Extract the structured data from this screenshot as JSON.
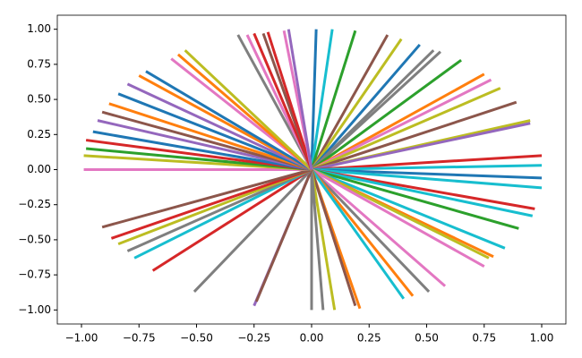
{
  "chart_data": {
    "type": "line",
    "xlim": [
      -1.105,
      1.105
    ],
    "ylim": [
      -1.1,
      1.1
    ],
    "xticks": [
      {
        "value": -1,
        "label": "−1.00"
      },
      {
        "value": -0.75,
        "label": "−0.75"
      },
      {
        "value": -0.5,
        "label": "−0.50"
      },
      {
        "value": -0.25,
        "label": "−0.25"
      },
      {
        "value": 0,
        "label": "0.00"
      },
      {
        "value": 0.25,
        "label": "0.25"
      },
      {
        "value": 0.5,
        "label": "0.50"
      },
      {
        "value": 0.75,
        "label": "0.75"
      },
      {
        "value": 1,
        "label": "1.00"
      }
    ],
    "yticks": [
      {
        "value": -1,
        "label": "−1.00"
      },
      {
        "value": -0.75,
        "label": "−0.75"
      },
      {
        "value": -0.5,
        "label": "−0.50"
      },
      {
        "value": -0.25,
        "label": "−0.25"
      },
      {
        "value": 0,
        "label": "0.00"
      },
      {
        "value": 0.25,
        "label": "0.25"
      },
      {
        "value": 0.5,
        "label": "0.50"
      },
      {
        "value": 0.75,
        "label": "0.75"
      },
      {
        "value": 1,
        "label": "1.00"
      }
    ],
    "series": [
      {
        "color": "#1f77b4",
        "x": [
          0,
          0.02
        ],
        "values": [
          0,
          1.0
        ]
      },
      {
        "color": "#17becf",
        "x": [
          0,
          0.09
        ],
        "values": [
          0,
          1.0
        ]
      },
      {
        "color": "#2ca02c",
        "x": [
          0,
          0.19
        ],
        "values": [
          0,
          0.99
        ]
      },
      {
        "color": "#8c564b",
        "x": [
          0,
          0.33
        ],
        "values": [
          0,
          0.96
        ]
      },
      {
        "color": "#bcbd22",
        "x": [
          0,
          0.39
        ],
        "values": [
          0,
          0.93
        ]
      },
      {
        "color": "#1f77b4",
        "x": [
          0,
          0.47
        ],
        "values": [
          0,
          0.89
        ]
      },
      {
        "color": "#7f7f7f",
        "x": [
          0,
          0.53
        ],
        "values": [
          0,
          0.85
        ]
      },
      {
        "color": "#7f7f7f",
        "x": [
          0,
          0.56
        ],
        "values": [
          0,
          0.84
        ]
      },
      {
        "color": "#2ca02c",
        "x": [
          0,
          0.65
        ],
        "values": [
          0,
          0.78
        ]
      },
      {
        "color": "#ff7f0e",
        "x": [
          0,
          0.75
        ],
        "values": [
          0,
          0.68
        ]
      },
      {
        "color": "#e377c2",
        "x": [
          0,
          0.78
        ],
        "values": [
          0,
          0.64
        ]
      },
      {
        "color": "#bcbd22",
        "x": [
          0,
          0.82
        ],
        "values": [
          0,
          0.58
        ]
      },
      {
        "color": "#8c564b",
        "x": [
          0,
          0.89
        ],
        "values": [
          0,
          0.48
        ]
      },
      {
        "color": "#bcbd22",
        "x": [
          0,
          0.95
        ],
        "values": [
          0,
          0.35
        ]
      },
      {
        "color": "#9467bd",
        "x": [
          0,
          0.95
        ],
        "values": [
          0,
          0.33
        ]
      },
      {
        "color": "#d62728",
        "x": [
          0,
          1.0
        ],
        "values": [
          0,
          0.1
        ]
      },
      {
        "color": "#17becf",
        "x": [
          0,
          1.0
        ],
        "values": [
          0,
          0.03
        ]
      },
      {
        "color": "#1f77b4",
        "x": [
          0,
          1.0
        ],
        "values": [
          0,
          -0.06
        ]
      },
      {
        "color": "#17becf",
        "x": [
          0,
          1.0
        ],
        "values": [
          0,
          -0.13
        ]
      },
      {
        "color": "#d62728",
        "x": [
          0,
          0.97
        ],
        "values": [
          0,
          -0.28
        ]
      },
      {
        "color": "#17becf",
        "x": [
          0,
          0.96
        ],
        "values": [
          0,
          -0.33
        ]
      },
      {
        "color": "#2ca02c",
        "x": [
          0,
          0.9
        ],
        "values": [
          0,
          -0.42
        ]
      },
      {
        "color": "#17becf",
        "x": [
          0,
          0.84
        ],
        "values": [
          0,
          -0.56
        ]
      },
      {
        "color": "#ff7f0e",
        "x": [
          0,
          0.79
        ],
        "values": [
          0,
          -0.62
        ]
      },
      {
        "color": "#bcbd22",
        "x": [
          0,
          0.77
        ],
        "values": [
          0,
          -0.63
        ]
      },
      {
        "color": "#e377c2",
        "x": [
          0,
          0.75
        ],
        "values": [
          0,
          -0.69
        ]
      },
      {
        "color": "#e377c2",
        "x": [
          0,
          0.58
        ],
        "values": [
          0,
          -0.83
        ]
      },
      {
        "color": "#7f7f7f",
        "x": [
          0,
          0.51
        ],
        "values": [
          0,
          -0.87
        ]
      },
      {
        "color": "#ff7f0e",
        "x": [
          0,
          0.44
        ],
        "values": [
          0,
          -0.9
        ]
      },
      {
        "color": "#17becf",
        "x": [
          0,
          0.4
        ],
        "values": [
          0,
          -0.92
        ]
      },
      {
        "color": "#ff7f0e",
        "x": [
          0,
          0.21
        ],
        "values": [
          0,
          -0.99
        ]
      },
      {
        "color": "#8c564b",
        "x": [
          0,
          0.19
        ],
        "values": [
          0,
          -0.97
        ]
      },
      {
        "color": "#bcbd22",
        "x": [
          0,
          0.1
        ],
        "values": [
          0,
          -1.0
        ]
      },
      {
        "color": "#7f7f7f",
        "x": [
          0,
          0.05
        ],
        "values": [
          0,
          -1.0
        ]
      },
      {
        "color": "#7f7f7f",
        "x": [
          0,
          0.0
        ],
        "values": [
          0,
          -1.0
        ]
      },
      {
        "color": "#9467bd",
        "x": [
          0,
          -0.25
        ],
        "values": [
          0,
          -0.97
        ]
      },
      {
        "color": "#8c564b",
        "x": [
          0,
          -0.24
        ],
        "values": [
          0,
          -0.94
        ]
      },
      {
        "color": "#7f7f7f",
        "x": [
          0,
          -0.51
        ],
        "values": [
          0,
          -0.87
        ]
      },
      {
        "color": "#d62728",
        "x": [
          0,
          -0.69
        ],
        "values": [
          0,
          -0.72
        ]
      },
      {
        "color": "#17becf",
        "x": [
          0,
          -0.77
        ],
        "values": [
          0,
          -0.63
        ]
      },
      {
        "color": "#7f7f7f",
        "x": [
          0,
          -0.8
        ],
        "values": [
          0,
          -0.58
        ]
      },
      {
        "color": "#bcbd22",
        "x": [
          0,
          -0.84
        ],
        "values": [
          0,
          -0.53
        ]
      },
      {
        "color": "#d62728",
        "x": [
          0,
          -0.87
        ],
        "values": [
          0,
          -0.49
        ]
      },
      {
        "color": "#8c564b",
        "x": [
          0,
          -0.91
        ],
        "values": [
          0,
          -0.41
        ]
      },
      {
        "color": "#e377c2",
        "x": [
          0,
          -0.99
        ],
        "values": [
          0,
          0.0
        ]
      },
      {
        "color": "#bcbd22",
        "x": [
          0,
          -0.99
        ],
        "values": [
          0,
          0.1
        ]
      },
      {
        "color": "#2ca02c",
        "x": [
          0,
          -0.98
        ],
        "values": [
          0,
          0.15
        ]
      },
      {
        "color": "#d62728",
        "x": [
          0,
          -0.98
        ],
        "values": [
          0,
          0.21
        ]
      },
      {
        "color": "#1f77b4",
        "x": [
          0,
          -0.95
        ],
        "values": [
          0,
          0.27
        ]
      },
      {
        "color": "#9467bd",
        "x": [
          0,
          -0.93
        ],
        "values": [
          0,
          0.35
        ]
      },
      {
        "color": "#8c564b",
        "x": [
          0,
          -0.91
        ],
        "values": [
          0,
          0.41
        ]
      },
      {
        "color": "#ff7f0e",
        "x": [
          0,
          -0.88
        ],
        "values": [
          0,
          0.47
        ]
      },
      {
        "color": "#1f77b4",
        "x": [
          0,
          -0.84
        ],
        "values": [
          0,
          0.54
        ]
      },
      {
        "color": "#9467bd",
        "x": [
          0,
          -0.8
        ],
        "values": [
          0,
          0.61
        ]
      },
      {
        "color": "#ff7f0e",
        "x": [
          0,
          -0.75
        ],
        "values": [
          0,
          0.67
        ]
      },
      {
        "color": "#1f77b4",
        "x": [
          0,
          -0.72
        ],
        "values": [
          0,
          0.7
        ]
      },
      {
        "color": "#e377c2",
        "x": [
          0,
          -0.61
        ],
        "values": [
          0,
          0.79
        ]
      },
      {
        "color": "#ff7f0e",
        "x": [
          0,
          -0.58
        ],
        "values": [
          0,
          0.82
        ]
      },
      {
        "color": "#bcbd22",
        "x": [
          0,
          -0.55
        ],
        "values": [
          0,
          0.85
        ]
      },
      {
        "color": "#7f7f7f",
        "x": [
          0,
          -0.32
        ],
        "values": [
          0,
          0.96
        ]
      },
      {
        "color": "#e377c2",
        "x": [
          0,
          -0.28
        ],
        "values": [
          0,
          0.96
        ]
      },
      {
        "color": "#d62728",
        "x": [
          0,
          -0.25
        ],
        "values": [
          0,
          0.97
        ]
      },
      {
        "color": "#8c564b",
        "x": [
          0,
          -0.21
        ],
        "values": [
          0,
          0.97
        ]
      },
      {
        "color": "#d62728",
        "x": [
          0,
          -0.19
        ],
        "values": [
          0,
          0.98
        ]
      },
      {
        "color": "#e377c2",
        "x": [
          0,
          -0.12
        ],
        "values": [
          0,
          0.99
        ]
      },
      {
        "color": "#9467bd",
        "x": [
          0,
          -0.1
        ],
        "values": [
          0,
          1.0
        ]
      }
    ]
  }
}
